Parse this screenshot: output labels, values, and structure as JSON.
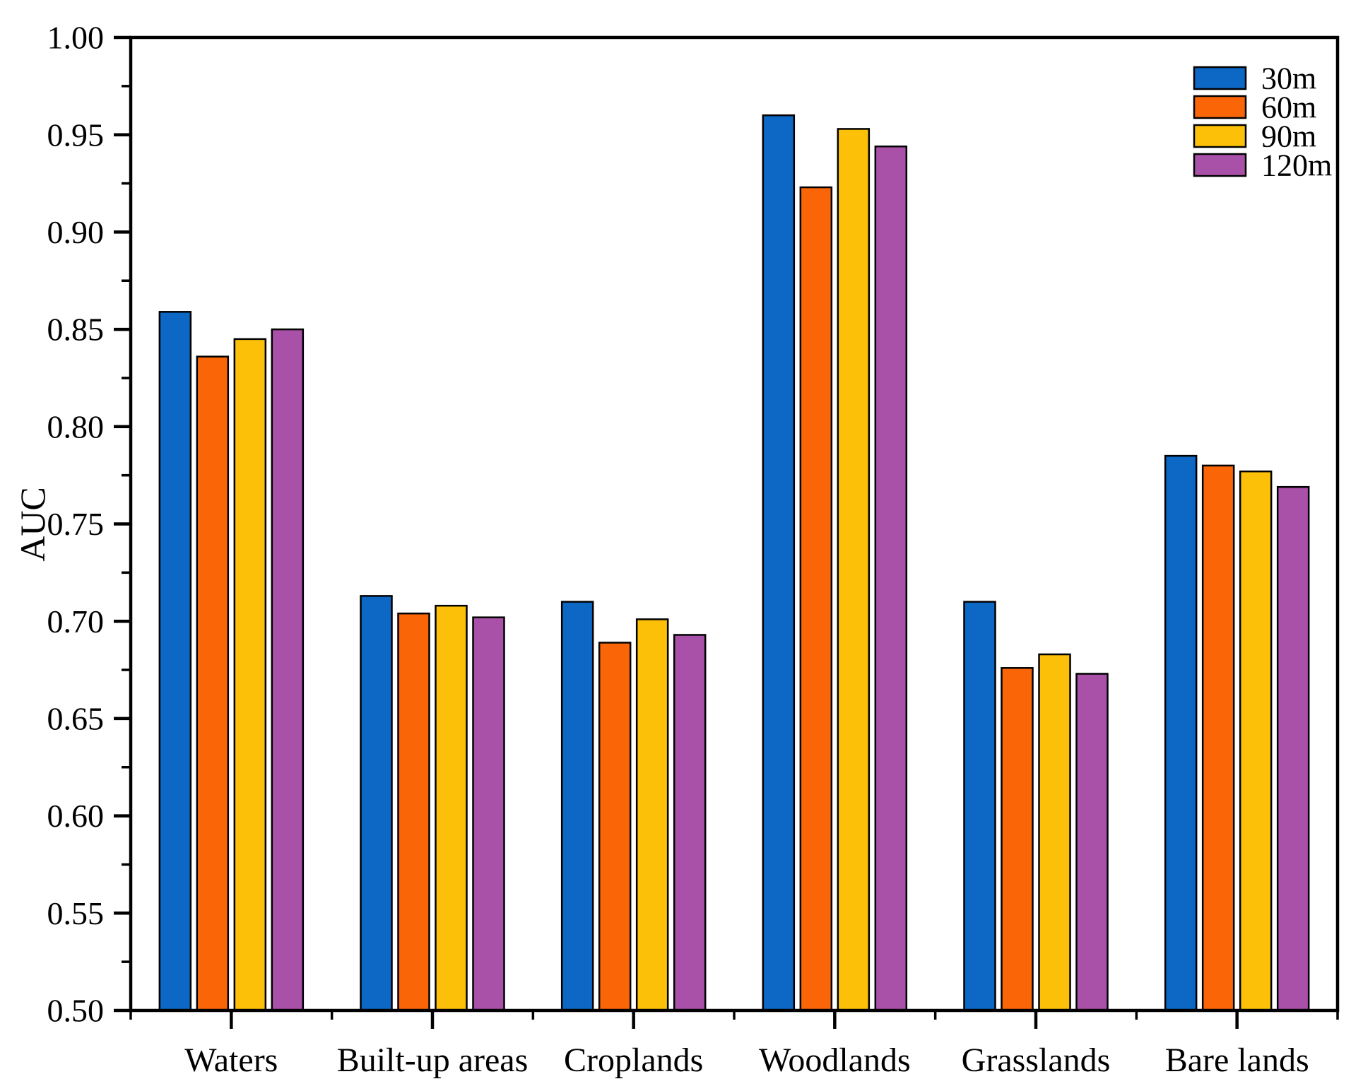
{
  "chart_data": {
    "type": "bar",
    "title": "",
    "xlabel": "",
    "ylabel": "AUC",
    "categories": [
      "Waters",
      "Built-up areas",
      "Croplands",
      "Woodlands",
      "Grasslands",
      "Bare lands"
    ],
    "series": [
      {
        "name": "30m",
        "color": "#0c68c4",
        "values": [
          0.859,
          0.713,
          0.71,
          0.96,
          0.71,
          0.785
        ]
      },
      {
        "name": "60m",
        "color": "#fa6508",
        "values": [
          0.836,
          0.704,
          0.689,
          0.923,
          0.676,
          0.78
        ]
      },
      {
        "name": "90m",
        "color": "#fcc008",
        "values": [
          0.845,
          0.708,
          0.701,
          0.953,
          0.683,
          0.777
        ]
      },
      {
        "name": "120m",
        "color": "#a950a8",
        "values": [
          0.85,
          0.702,
          0.693,
          0.944,
          0.673,
          0.769
        ]
      }
    ],
    "ylim": [
      0.5,
      1.0
    ],
    "ytick_step": 0.05,
    "ytick_minor_step": 0.025,
    "ytick_labels": [
      "0.50",
      "0.55",
      "0.60",
      "0.65",
      "0.70",
      "0.75",
      "0.80",
      "0.85",
      "0.90",
      "0.95",
      "1.00"
    ],
    "legend_position": "top-right",
    "legend_entries": [
      "30m",
      "60m",
      "90m",
      "120m"
    ],
    "grid": false,
    "bar_edge_color": "#000000",
    "axis_color": "#000000",
    "background": "#ffffff"
  }
}
